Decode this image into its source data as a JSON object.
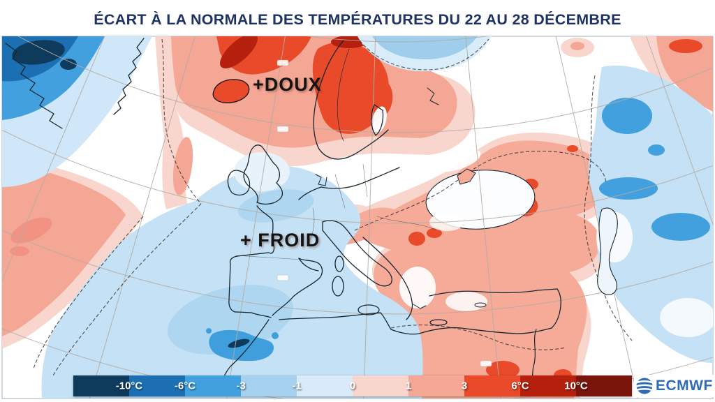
{
  "title": "ÉCART À LA NORMALE DES TEMPÉRATURES DU 22 AU 28 DÉCEMBRE",
  "title_color": "#1e3263",
  "map": {
    "annotations": [
      {
        "label": "+DOUX"
      },
      {
        "label": "+ FROID"
      }
    ]
  },
  "legend": {
    "ticks": [
      "-10°C",
      "-6°C",
      "-3",
      "-1",
      "0",
      "1",
      "3",
      "6°C",
      "10°C"
    ],
    "segment_colors": [
      "#0e3a5c",
      "#1b6fb2",
      "#41a0dd",
      "#a6d1ee",
      "#d9ebf8",
      "#f9d6cd",
      "#f5a795",
      "#e84a2a",
      "#b5200f",
      "#7a150c"
    ]
  },
  "logo": {
    "text": "ECMWF",
    "color": "#2f6cb7"
  }
}
